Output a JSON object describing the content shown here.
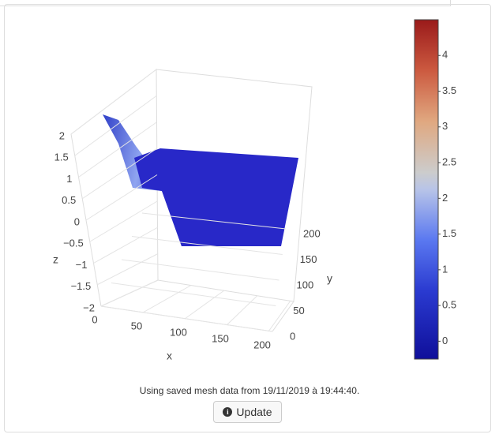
{
  "plot": {
    "x_title": "x",
    "y_title": "y",
    "z_title": "z",
    "xticks": [
      0,
      50,
      100,
      150,
      200
    ],
    "yticks": [
      0,
      50,
      100,
      150,
      200
    ],
    "zticks": [
      {
        "value": -2,
        "label": "−2"
      },
      {
        "value": -1.5,
        "label": "−1.5"
      },
      {
        "value": -1,
        "label": "−1"
      },
      {
        "value": -0.5,
        "label": "−0.5"
      },
      0,
      0.5,
      1,
      1.5,
      2
    ],
    "colorbar": {
      "lim": [
        -0.25,
        4.5
      ],
      "ticks": [
        0,
        0.5,
        1,
        1.5,
        2,
        2.5,
        3,
        3.5,
        4
      ]
    }
  },
  "caption": "Using saved mesh data from 19/11/2019 à 19:44:40.",
  "button": "Update"
}
